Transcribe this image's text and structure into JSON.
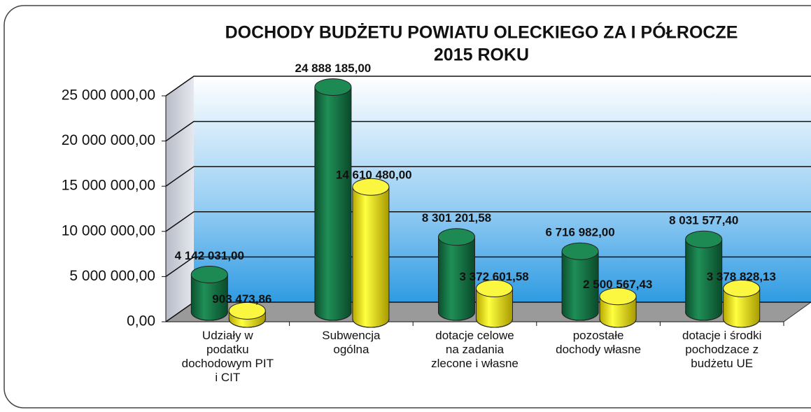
{
  "chart_data": {
    "type": "bar3d",
    "title": [
      "DOCHODY BUDŻETU POWIATU OLECKIEGO ZA I PÓŁROCZE",
      "2015 ROKU"
    ],
    "categories": [
      "Udziały w podatku dochodowym PIT i CIT",
      "Subwencja ogólna",
      "dotacje celowe na zadania zlecone i własne",
      "pozostałe dochody własne",
      "dotacje i środki pochodzace z budżetu UE"
    ],
    "series": [
      {
        "color": "#167a48",
        "values": [
          4142031.0,
          24888185.0,
          8301201.58,
          6716982.0,
          8031577.4
        ],
        "value_labels": [
          "4 142 031,00",
          "24 888 185,00",
          "8 301 201,58",
          "6 716 982,00",
          "8 031 577,40"
        ]
      },
      {
        "color": "#f4f000",
        "values": [
          903473.86,
          14610480.0,
          3372601.58,
          2500567.43,
          3378828.13
        ],
        "value_labels": [
          "903 473,86",
          "14 610 480,00",
          "3 372 601,58",
          "2 500 567,43",
          "3 378 828,13"
        ]
      }
    ],
    "ylim": [
      0,
      25000000
    ],
    "yticks": [
      {
        "value": 0,
        "label": "0,00"
      },
      {
        "value": 5000000,
        "label": "5 000 000,00"
      },
      {
        "value": 10000000,
        "label": "10 000 000,00"
      },
      {
        "value": 15000000,
        "label": "15 000 000,00"
      },
      {
        "value": 20000000,
        "label": "20 000 000,00"
      },
      {
        "value": 25000000,
        "label": "25 000 000,00"
      }
    ],
    "grid": true
  }
}
